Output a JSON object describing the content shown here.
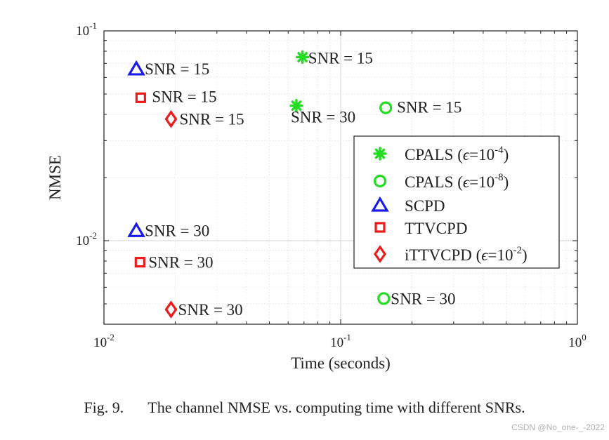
{
  "chart_data": {
    "type": "scatter",
    "xscale": "log",
    "yscale": "log",
    "xlim": [
      0.01,
      1
    ],
    "ylim": [
      0.004,
      0.1
    ],
    "xlabel": "Time (seconds)",
    "ylabel": "NMSE",
    "x_ticks": [
      {
        "value": 0.01,
        "base": "10",
        "exp": "-2"
      },
      {
        "value": 0.1,
        "base": "10",
        "exp": "-1"
      },
      {
        "value": 1,
        "base": "10",
        "exp": "0"
      }
    ],
    "y_ticks": [
      {
        "value": 0.01,
        "base": "10",
        "exp": "-2"
      },
      {
        "value": 0.1,
        "base": "10",
        "exp": "-1"
      }
    ],
    "grid": true,
    "legend_position": "right",
    "series": [
      {
        "name": "CPALS (ε=10^-4)",
        "marker": "asterisk",
        "color": "#22dd22",
        "legend_parts": [
          "CPALS (",
          "ϵ",
          "=10",
          "-4",
          ")"
        ],
        "points": [
          {
            "x": 0.069,
            "y": 0.075,
            "label": "SNR = 15"
          },
          {
            "x": 0.065,
            "y": 0.044,
            "label": "SNR = 30"
          }
        ]
      },
      {
        "name": "CPALS (ε=10^-8)",
        "marker": "circle",
        "color": "#22dd22",
        "legend_parts": [
          "CPALS (",
          "ϵ",
          "=10",
          "-8",
          ")"
        ],
        "points": [
          {
            "x": 0.155,
            "y": 0.043,
            "label": "SNR = 15"
          },
          {
            "x": 0.152,
            "y": 0.0053,
            "label": "SNR = 30"
          }
        ]
      },
      {
        "name": "SCPD",
        "marker": "triangle",
        "color": "#1a1aee",
        "legend_parts": [
          "SCPD"
        ],
        "points": [
          {
            "x": 0.0137,
            "y": 0.066,
            "label": "SNR = 15"
          },
          {
            "x": 0.0137,
            "y": 0.0112,
            "label": "SNR = 30"
          }
        ]
      },
      {
        "name": "TTVCPD",
        "marker": "square",
        "color": "#ee1a1a",
        "legend_parts": [
          "TTVCPD"
        ],
        "points": [
          {
            "x": 0.0143,
            "y": 0.048,
            "label": "SNR = 15"
          },
          {
            "x": 0.0142,
            "y": 0.0079,
            "label": "SNR = 30"
          }
        ]
      },
      {
        "name": "iTTVCPD (ε=10^-2)",
        "marker": "diamond",
        "color": "#ee1a1a",
        "legend_parts": [
          "iTTVCPD (",
          "ϵ",
          "=10",
          "-2",
          ")"
        ],
        "points": [
          {
            "x": 0.0192,
            "y": 0.038,
            "label": "SNR = 15"
          },
          {
            "x": 0.0192,
            "y": 0.0047,
            "label": "SNR = 30"
          }
        ]
      }
    ]
  },
  "caption": {
    "figure_number": "Fig. 9.",
    "text": "The channel NMSE vs. computing time with different SNRs."
  },
  "watermark": "CSDN @No_one-_-2022"
}
